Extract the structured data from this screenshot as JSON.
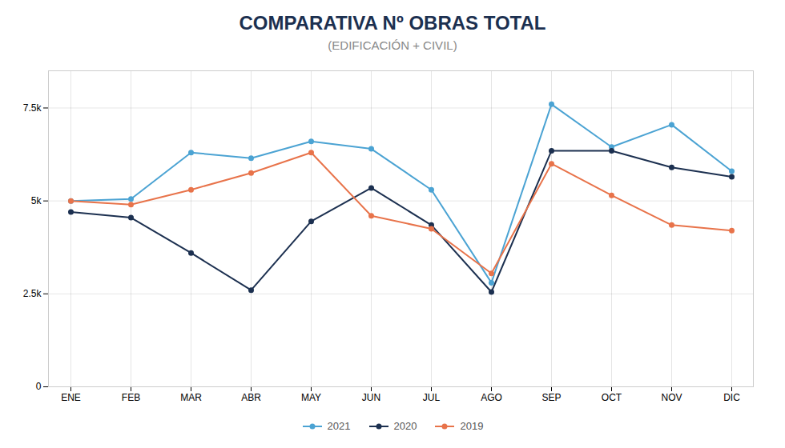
{
  "chart_data": {
    "type": "line",
    "title": "COMPARATIVA Nº OBRAS TOTAL",
    "subtitle": "(EDIFICACIÓN + CIVIL)",
    "categories": [
      "ENE",
      "FEB",
      "MAR",
      "ABR",
      "MAY",
      "JUN",
      "JUL",
      "AGO",
      "SEP",
      "OCT",
      "NOV",
      "DIC"
    ],
    "series": [
      {
        "name": "2021",
        "color": "#4BA3D3",
        "values": [
          5000,
          5050,
          6300,
          6150,
          6600,
          6400,
          5300,
          2800,
          7600,
          6450,
          7050,
          5800
        ]
      },
      {
        "name": "2020",
        "color": "#1C3050",
        "values": [
          4700,
          4550,
          3600,
          2600,
          4450,
          5350,
          4350,
          2550,
          6350,
          6350,
          5900,
          5650
        ]
      },
      {
        "name": "2019",
        "color": "#E8734A",
        "values": [
          5000,
          4900,
          5300,
          5750,
          6300,
          4600,
          4250,
          3050,
          6000,
          5150,
          4350,
          4200
        ]
      }
    ],
    "ylim": [
      0,
      8500
    ],
    "yticks": [
      0,
      {
        "value": 2500,
        "label": "2.5k"
      },
      {
        "value": 5000,
        "label": "5k"
      },
      {
        "value": 7500,
        "label": "7.5k"
      }
    ],
    "grid": true,
    "legend": "bottom",
    "marker": "circle"
  }
}
